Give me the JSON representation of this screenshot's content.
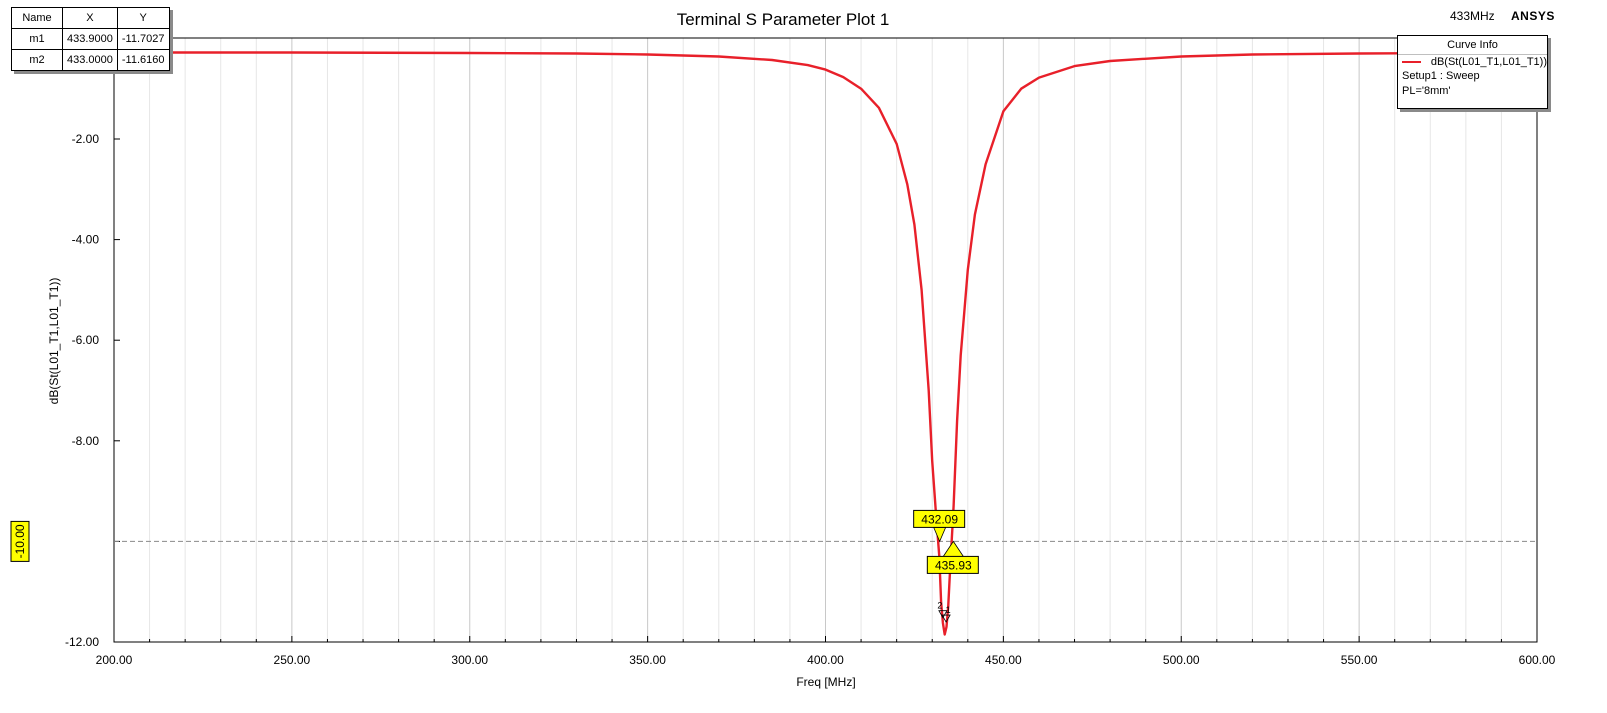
{
  "header": {
    "freq_label": "433MHz",
    "brand": "ANSYS"
  },
  "marker_table": {
    "headers": [
      "Name",
      "X",
      "Y"
    ],
    "rows": [
      {
        "name": "m1",
        "x": "433.9000",
        "y": "-11.7027"
      },
      {
        "name": "m2",
        "x": "433.0000",
        "y": "-11.6160"
      }
    ]
  },
  "legend": {
    "title": "Curve Info",
    "trace": "dB(St(L01_T1,L01_T1))",
    "setup": "Setup1 : Sweep",
    "param": "PL='8mm'"
  },
  "colors": {
    "trace": "#e8202a",
    "grid_major": "#c8c8c8",
    "grid_minor": "#e6e6e6",
    "marker_fill": "#ffff00"
  },
  "chart_data": {
    "type": "line",
    "title": "Terminal S Parameter Plot 1",
    "xlabel": "Freq [MHz]",
    "ylabel": "dB(St(L01_T1,L01_T1))",
    "xlim": [
      200,
      600
    ],
    "ylim": [
      -12,
      -0.2
    ],
    "x_ticks": [
      "200.00",
      "250.00",
      "300.00",
      "350.00",
      "400.00",
      "450.00",
      "500.00",
      "550.00",
      "600.00"
    ],
    "y_ticks": [
      "-2.00",
      "-4.00",
      "-6.00",
      "-8.00",
      "-10.00",
      "-12.00"
    ],
    "grid": true,
    "legend_position": "top-right",
    "series": [
      {
        "name": "dB(St(L01_T1,L01_T1))",
        "x": [
          200,
          250,
          300,
          330,
          350,
          370,
          385,
          395,
          400,
          405,
          410,
          415,
          420,
          423,
          425,
          427,
          429,
          430,
          431,
          432,
          432.5,
          433,
          433.5,
          434,
          434.5,
          435,
          436,
          437,
          438,
          440,
          442,
          445,
          450,
          455,
          460,
          470,
          480,
          500,
          520,
          550,
          580,
          600
        ],
        "y": [
          -0.28,
          -0.28,
          -0.29,
          -0.3,
          -0.32,
          -0.36,
          -0.43,
          -0.53,
          -0.62,
          -0.77,
          -1.0,
          -1.38,
          -2.1,
          -2.9,
          -3.7,
          -5.0,
          -7.0,
          -8.4,
          -9.4,
          -10.3,
          -11.2,
          -11.62,
          -11.85,
          -11.7,
          -11.3,
          -10.6,
          -9.3,
          -7.6,
          -6.3,
          -4.6,
          -3.5,
          -2.5,
          -1.45,
          -1.0,
          -0.78,
          -0.55,
          -0.45,
          -0.36,
          -0.32,
          -0.3,
          -0.29,
          -0.29
        ]
      }
    ],
    "reference_line": {
      "y": -10.0,
      "label": "-10.00"
    },
    "annotations": [
      {
        "x": 432.09,
        "y": -10.0,
        "label": "432.09"
      },
      {
        "x": 435.93,
        "y": -10.0,
        "label": "435.93"
      }
    ],
    "markers": [
      {
        "name": "m1",
        "x": 433.9,
        "y": -11.7027
      },
      {
        "name": "m2",
        "x": 433.0,
        "y": -11.616
      }
    ]
  }
}
